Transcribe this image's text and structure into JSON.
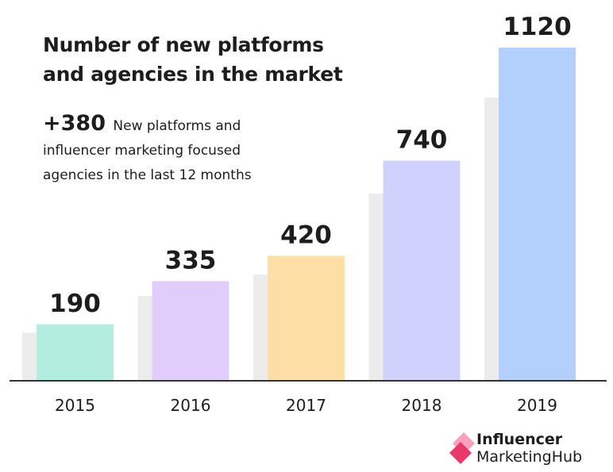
{
  "chart_data": {
    "type": "bar",
    "title": "Number of new platforms and agencies in the market",
    "categories": [
      "2015",
      "2016",
      "2017",
      "2018",
      "2019"
    ],
    "values": [
      190,
      335,
      420,
      740,
      1120
    ],
    "colors": [
      "#b3ede0",
      "#e1cdfc",
      "#fddfa5",
      "#d1d1fd",
      "#b3d0fd"
    ],
    "shadow_color": "#ececec",
    "axis_color": "#333333",
    "ylim": [
      0,
      1120
    ],
    "xlabel": "",
    "ylabel": ""
  },
  "callout": {
    "highlight": "+380",
    "text": "New platforms and influencer marketing focused agencies in the last 12 months"
  },
  "brand": {
    "line1": "Influencer",
    "line2": "MarketingHub",
    "accent": "#e8396a"
  }
}
